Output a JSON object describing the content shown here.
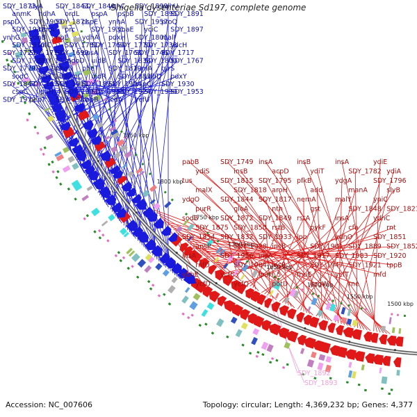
{
  "title": "Shigella dysenteriae Sd197, complete genome",
  "footer": {
    "accession": "Accession: NC_007606",
    "summary": "Topology: circular; Length: 4,369,232 bp; Genes: 4,377"
  },
  "colors": {
    "plus_strand": "#1a1adc",
    "minus_strand": "#e01818",
    "faded": "#f0a0d8",
    "backbone": "#555555",
    "tick_mark": "#2a8a2a"
  },
  "scale_ticks": [
    "1500 kbp",
    "1550 kbp",
    "1600 kbp",
    "1650 kbp",
    "1700 kbp",
    "1750 kbp",
    "1800 kbp",
    "1850 kbp"
  ],
  "plus_strand_genes": [
    "SDY_1873",
    "slyA",
    "SDY_1843",
    "SDY_1840",
    "ynhC",
    "SDY_1899",
    "ydhU",
    "anmK",
    "hdhA",
    "ordL",
    "pspA",
    "pspB",
    "SDY_1895",
    "SDY_1891",
    "pspD",
    "SDY_1900",
    "SDY_1871",
    "pspE",
    "ynhA",
    "SDY_1957",
    "proQ",
    "SDY_1932",
    "rrmA",
    "prc",
    "SDY_1931",
    "yoaE",
    "yciC",
    "SDY_1897",
    "ynhG",
    "ydhB",
    "ribE",
    "ydhA",
    "pdxH",
    "SDY_1801",
    "malI",
    "SDY_1810",
    "infC",
    "SDY_1781",
    "SDY_1769",
    "SDY_1770",
    "SDY_1738",
    "ydcH",
    "SDY_1723",
    "SDY_1710",
    "SDY_1699",
    "ppsA",
    "SDY_1768",
    "SDY_1746",
    "SDY_1717",
    "SDY_1788",
    "SDY_1736",
    "mdoD",
    "uidB",
    "SDY_1833",
    "SDY_1800",
    "SDY_1767",
    "SDY_1779",
    "SDY_1789",
    "pheS",
    "pheT",
    "SDY_1819",
    "fumA",
    "tyrS",
    "sodC",
    "SDY_1839",
    "fumC",
    "uidR",
    "SDY_1883",
    "ydhD",
    "pdxY",
    "SDY_1847",
    "SDY_1874",
    "SDY_1911",
    "SDY_1894",
    "SDY_1904",
    "pspC",
    "SDY_1930",
    "cspC",
    "ipaH_4",
    "SDY_1993",
    "SDY_1955",
    "SDY_1924",
    "SDY_1990",
    "SDY_1953",
    "SDY_1972",
    "pepT",
    "SDY_1980",
    "cobB",
    "icdA",
    "ycfU"
  ],
  "minus_strand_genes": [
    "pabB",
    "SDY_1749",
    "insA",
    "insB",
    "insA",
    "ydiE",
    "ydiS",
    "insB",
    "acpD",
    "ydiT",
    "SDY_1782",
    "ydiA",
    "tus",
    "SDY_1815",
    "SDY_1795",
    "pfkB",
    "ydgA",
    "SDY_1796",
    "malX",
    "SDY_1818",
    "aroH",
    "add",
    "manA",
    "slyB",
    "ydgO",
    "SDY_1844",
    "SDY_1817",
    "nemA",
    "malY",
    "yniC",
    "purR",
    "gloA",
    "nth",
    "gst",
    "SDY_1848",
    "SDY_1821",
    "sodB",
    "SDY_1872",
    "SDY_1849",
    "rstA",
    "insA",
    "ydhC",
    "SDY_1875",
    "SDY_1850",
    "rstB",
    "pykF",
    "cfa",
    "rnt",
    "SDY_1854",
    "SDY_1832",
    "SDY_1933",
    "lpp",
    "ydhO",
    "SDY_1851",
    "ansP",
    "SDY_1928",
    "insB",
    "SDY_1901",
    "SDY_1889",
    "SDY_1852",
    "insA",
    "SDY_1956",
    "insA",
    "SDY_1917",
    "SDY_1983",
    "SDY_1920",
    "rnfD",
    "SDY_1984",
    "insB",
    "SDY_1947",
    "SDY_1921",
    "tppB",
    "ybhE",
    "ycfC",
    "ipaH_5",
    "fhuE",
    "ycfT",
    "mfd",
    "ycfD",
    "ycfQ",
    "potD",
    "ycgW",
    "rne"
  ],
  "faded_genes": [
    "SDY_1892",
    "SDY_1893"
  ]
}
